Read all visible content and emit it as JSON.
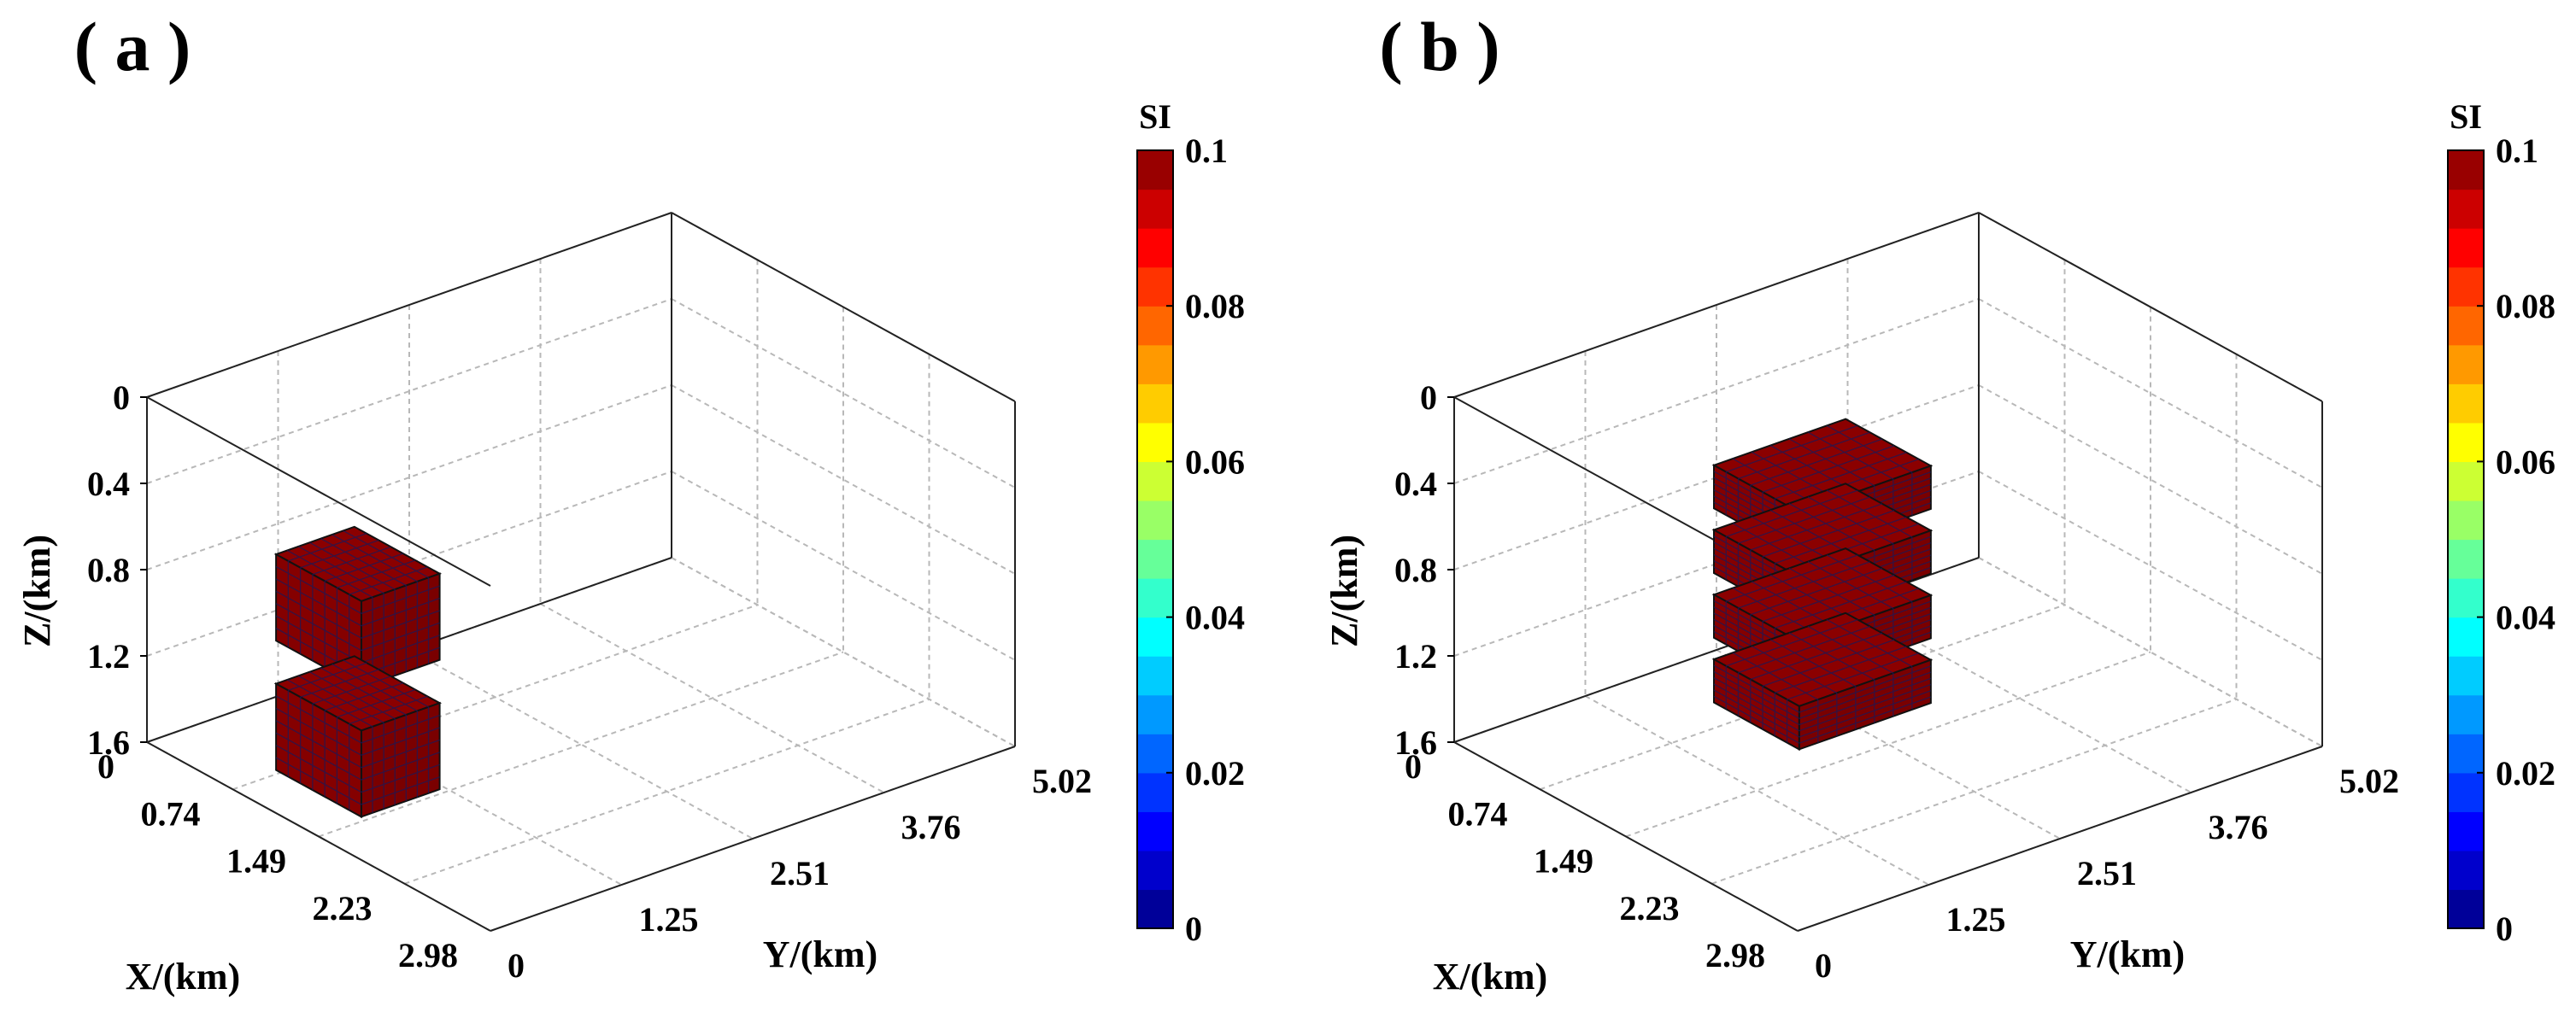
{
  "chart_data": [
    {
      "type": "3d-voxel",
      "panel_label": "( a )",
      "xlabel": "X/(km)",
      "ylabel": "Y/(km)",
      "zlabel": "Z/(km)",
      "x_ticks": [
        "0",
        "0.74",
        "1.49",
        "2.23",
        "2.98"
      ],
      "y_ticks": [
        "0",
        "1.25",
        "2.51",
        "3.76",
        "5.02"
      ],
      "z_ticks": [
        "0",
        "0.4",
        "0.8",
        "1.2",
        "1.6"
      ],
      "xlim": [
        0,
        2.98
      ],
      "ylim": [
        0,
        5.02
      ],
      "zlim": [
        0,
        1.6
      ],
      "z_direction": "down",
      "grid": true,
      "bodies": [
        {
          "name": "upper block",
          "susceptibility": 0.1,
          "x_km": [
            1.12,
            1.86
          ],
          "y_km": [
            0.0,
            0.75
          ],
          "z_km": [
            0.4,
            0.8
          ]
        },
        {
          "name": "lower block",
          "susceptibility": 0.1,
          "x_km": [
            1.12,
            1.86
          ],
          "y_km": [
            0.0,
            0.75
          ],
          "z_km": [
            1.0,
            1.4
          ]
        }
      ],
      "colorbar": {
        "title": "SI",
        "min": 0,
        "max": 0.1,
        "ticks": [
          "0",
          "0.02",
          "0.04",
          "0.06",
          "0.08",
          "0.1"
        ],
        "colormap": "jet"
      }
    },
    {
      "type": "3d-voxel",
      "panel_label": "( b )",
      "xlabel": "X/(km)",
      "ylabel": "Y/(km)",
      "zlabel": "Z/(km)",
      "x_ticks": [
        "0",
        "0.74",
        "1.49",
        "2.23",
        "2.98"
      ],
      "y_ticks": [
        "0",
        "1.25",
        "2.51",
        "3.76",
        "5.02"
      ],
      "z_ticks": [
        "0",
        "0.4",
        "0.8",
        "1.2",
        "1.6"
      ],
      "xlim": [
        0,
        2.98
      ],
      "ylim": [
        0,
        5.02
      ],
      "zlim": [
        0,
        1.6
      ],
      "z_direction": "down",
      "grid": true,
      "bodies": [
        {
          "name": "step 1",
          "susceptibility": 0.1,
          "x_km": [
            1.12,
            1.86
          ],
          "y_km": [
            1.25,
            2.51
          ],
          "z_km": [
            0.2,
            0.4
          ]
        },
        {
          "name": "step 2",
          "susceptibility": 0.1,
          "x_km": [
            1.12,
            1.86
          ],
          "y_km": [
            1.25,
            2.51
          ],
          "z_km": [
            0.5,
            0.7
          ]
        },
        {
          "name": "step 3",
          "susceptibility": 0.1,
          "x_km": [
            1.12,
            1.86
          ],
          "y_km": [
            1.25,
            2.51
          ],
          "z_km": [
            0.8,
            1.0
          ]
        },
        {
          "name": "step 4",
          "susceptibility": 0.1,
          "x_km": [
            1.12,
            1.86
          ],
          "y_km": [
            1.25,
            2.51
          ],
          "z_km": [
            1.1,
            1.3
          ]
        }
      ],
      "colorbar": {
        "title": "SI",
        "min": 0,
        "max": 0.1,
        "ticks": [
          "0",
          "0.02",
          "0.04",
          "0.06",
          "0.08",
          "0.1"
        ],
        "colormap": "jet"
      }
    }
  ],
  "colors": {
    "voxel_fill": "#8b0000",
    "voxel_edge": "#1a1a5a",
    "grid": "#b8b8b8",
    "box": "#000000"
  }
}
